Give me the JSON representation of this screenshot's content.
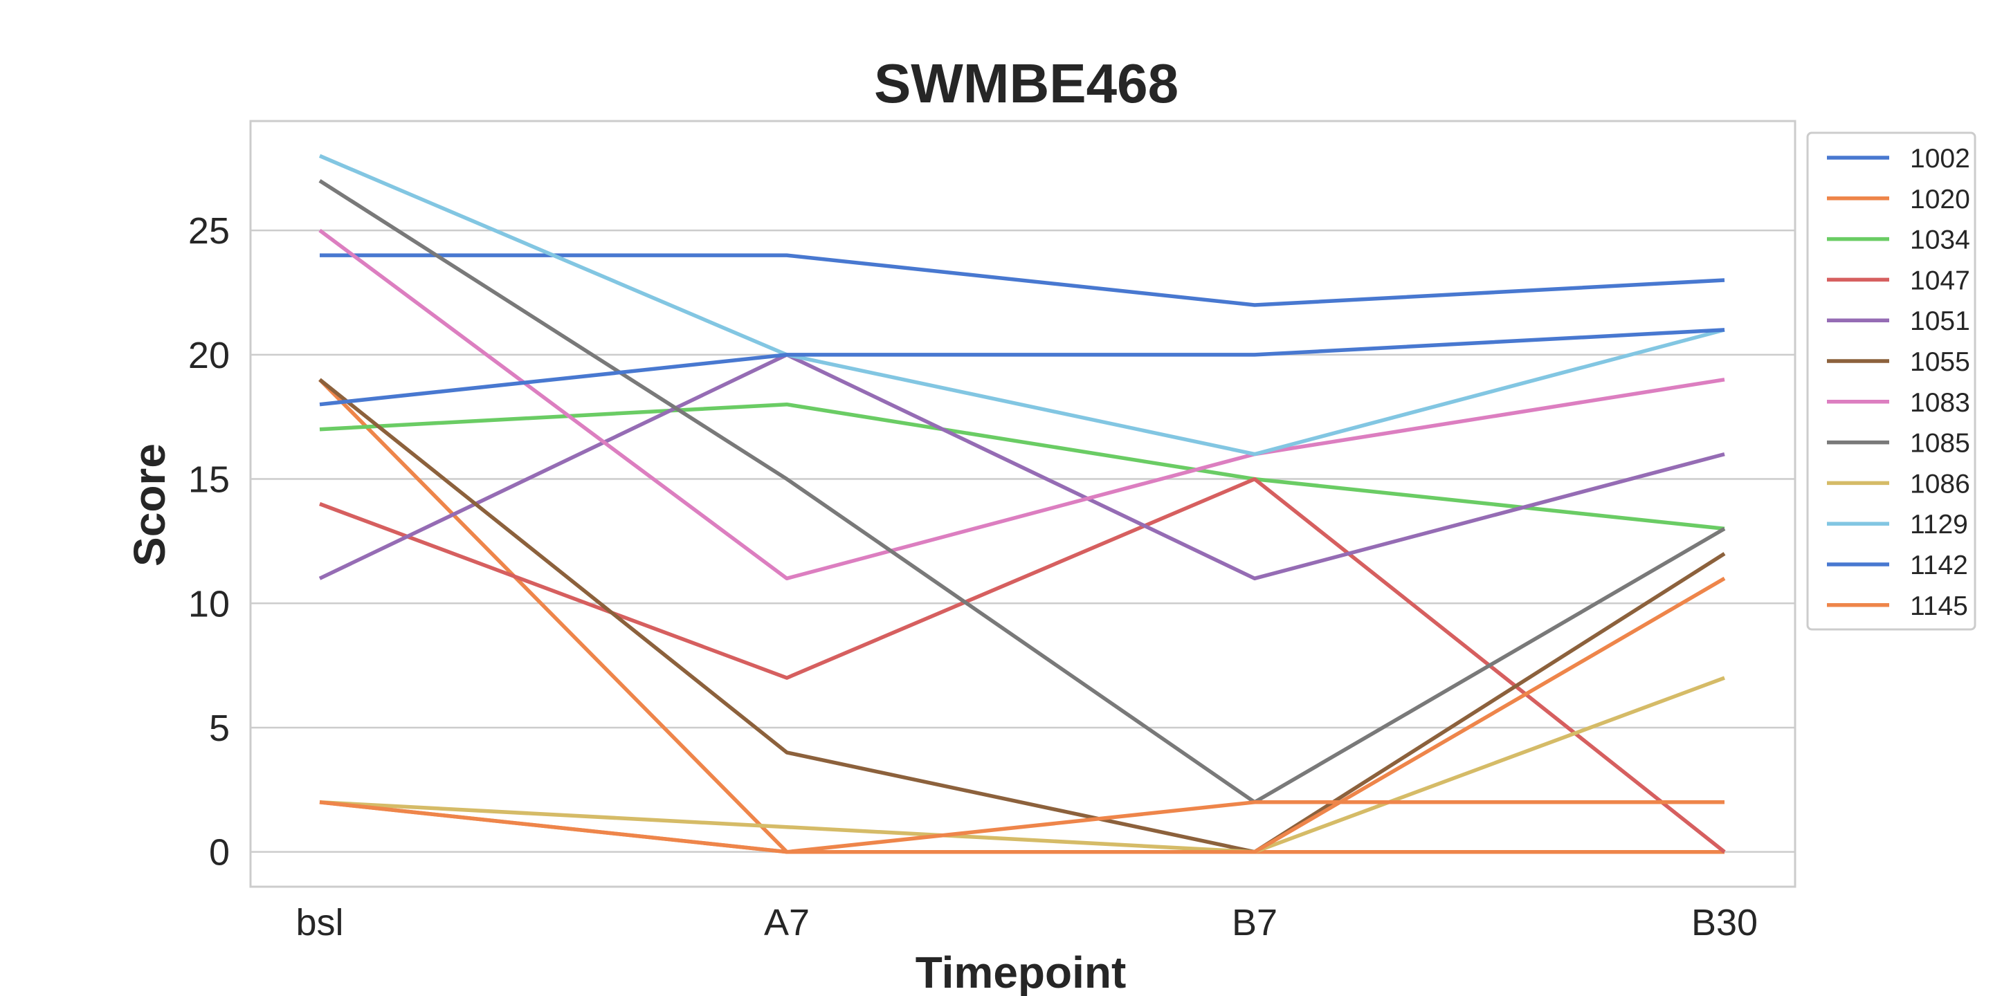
{
  "chart_data": {
    "type": "line",
    "title": "SWMBE468",
    "xlabel": "Timepoint",
    "ylabel": "Score",
    "categories": [
      "bsl",
      "A7",
      "B7",
      "B30"
    ],
    "ylim": [
      -1.4,
      29.4
    ],
    "yticks": [
      0,
      5,
      10,
      15,
      20,
      25
    ],
    "grid": "horizontal",
    "legend_position": "outside-right",
    "series": [
      {
        "name": "1002",
        "color": "#4878d0",
        "values": [
          24,
          24,
          22,
          23
        ]
      },
      {
        "name": "1020",
        "color": "#ee854a",
        "values": [
          19,
          0,
          0,
          0
        ]
      },
      {
        "name": "1034",
        "color": "#6acc64",
        "values": [
          17,
          18,
          15,
          13
        ]
      },
      {
        "name": "1047",
        "color": "#d65f5f",
        "values": [
          14,
          7,
          15,
          0
        ]
      },
      {
        "name": "1051",
        "color": "#956cb4",
        "values": [
          11,
          20,
          11,
          16
        ]
      },
      {
        "name": "1055",
        "color": "#8c613c",
        "values": [
          19,
          4,
          0,
          12
        ]
      },
      {
        "name": "1083",
        "color": "#dc7ec0",
        "values": [
          25,
          11,
          16,
          19
        ]
      },
      {
        "name": "1085",
        "color": "#797979",
        "values": [
          27,
          15,
          2,
          13
        ]
      },
      {
        "name": "1086",
        "color": "#d5bb67",
        "values": [
          2,
          1,
          0,
          7
        ]
      },
      {
        "name": "1129",
        "color": "#82c6e2",
        "values": [
          28,
          20,
          16,
          21
        ]
      },
      {
        "name": "1142",
        "color": "#4878d0",
        "values": [
          18,
          20,
          20,
          21
        ]
      },
      {
        "name": "1145",
        "color": "#ee854a",
        "values": [
          2,
          0,
          2,
          2
        ]
      }
    ],
    "extra_series_visible": [
      {
        "color": "#ee854a",
        "values": [
          2,
          0,
          0,
          11
        ]
      }
    ]
  }
}
